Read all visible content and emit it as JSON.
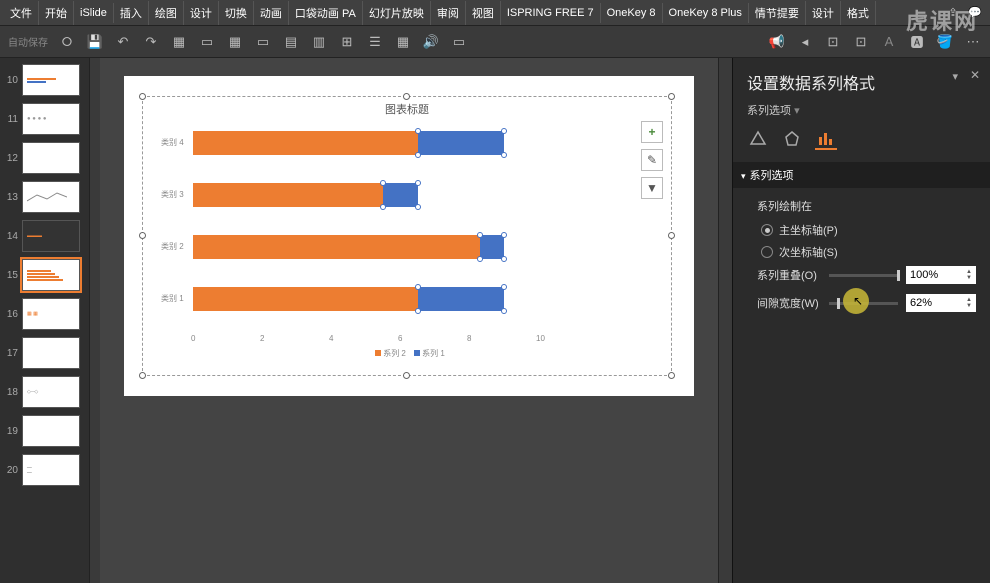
{
  "menu": [
    "文件",
    "开始",
    "iSlide",
    "插入",
    "绘图",
    "设计",
    "切换",
    "动画",
    "口袋动画 PA",
    "幻灯片放映",
    "审阅",
    "视图",
    "ISPRING FREE 7",
    "OneKey 8",
    "OneKey 8 Plus",
    "情节提要",
    "设计",
    "格式"
  ],
  "watermark": "虎课网",
  "autosave": "自动保存",
  "thumbs": [
    {
      "n": "10",
      "kind": "mini-chart"
    },
    {
      "n": "11",
      "kind": "dots"
    },
    {
      "n": "12",
      "kind": "boxes"
    },
    {
      "n": "13",
      "kind": "lines"
    },
    {
      "n": "14",
      "kind": "dark"
    },
    {
      "n": "15",
      "kind": "bars",
      "active": true
    },
    {
      "n": "16",
      "kind": "grid"
    },
    {
      "n": "17",
      "kind": "blank"
    },
    {
      "n": "18",
      "kind": "diagram"
    },
    {
      "n": "19",
      "kind": "blank"
    },
    {
      "n": "20",
      "kind": "text"
    }
  ],
  "chart": {
    "title": "图表标题",
    "categories": [
      "类别 4",
      "类别 3",
      "类别 2",
      "类别 1"
    ],
    "series": [
      {
        "name": "系列 2",
        "color": "#ed7d31",
        "values": [
          6.5,
          5.5,
          8.3,
          6.5
        ]
      },
      {
        "name": "系列 1",
        "color": "#4472c4",
        "values": [
          9.0,
          6.5,
          9.0,
          9.0
        ]
      }
    ],
    "xticks": [
      "0",
      "2",
      "4",
      "6",
      "8",
      "10"
    ],
    "legend": [
      "系列 2",
      "系列 1"
    ]
  },
  "sideButtons": [
    "+",
    "✎",
    "▼"
  ],
  "panel": {
    "title": "设置数据系列格式",
    "subtitle": "系列选项",
    "section": "系列选项",
    "plotOn": "系列绘制在",
    "primary": "主坐标轴(P)",
    "secondary": "次坐标轴(S)",
    "overlapLabel": "系列重叠(O)",
    "overlapValue": "100%",
    "gapLabel": "间隙宽度(W)",
    "gapValue": "62%"
  }
}
